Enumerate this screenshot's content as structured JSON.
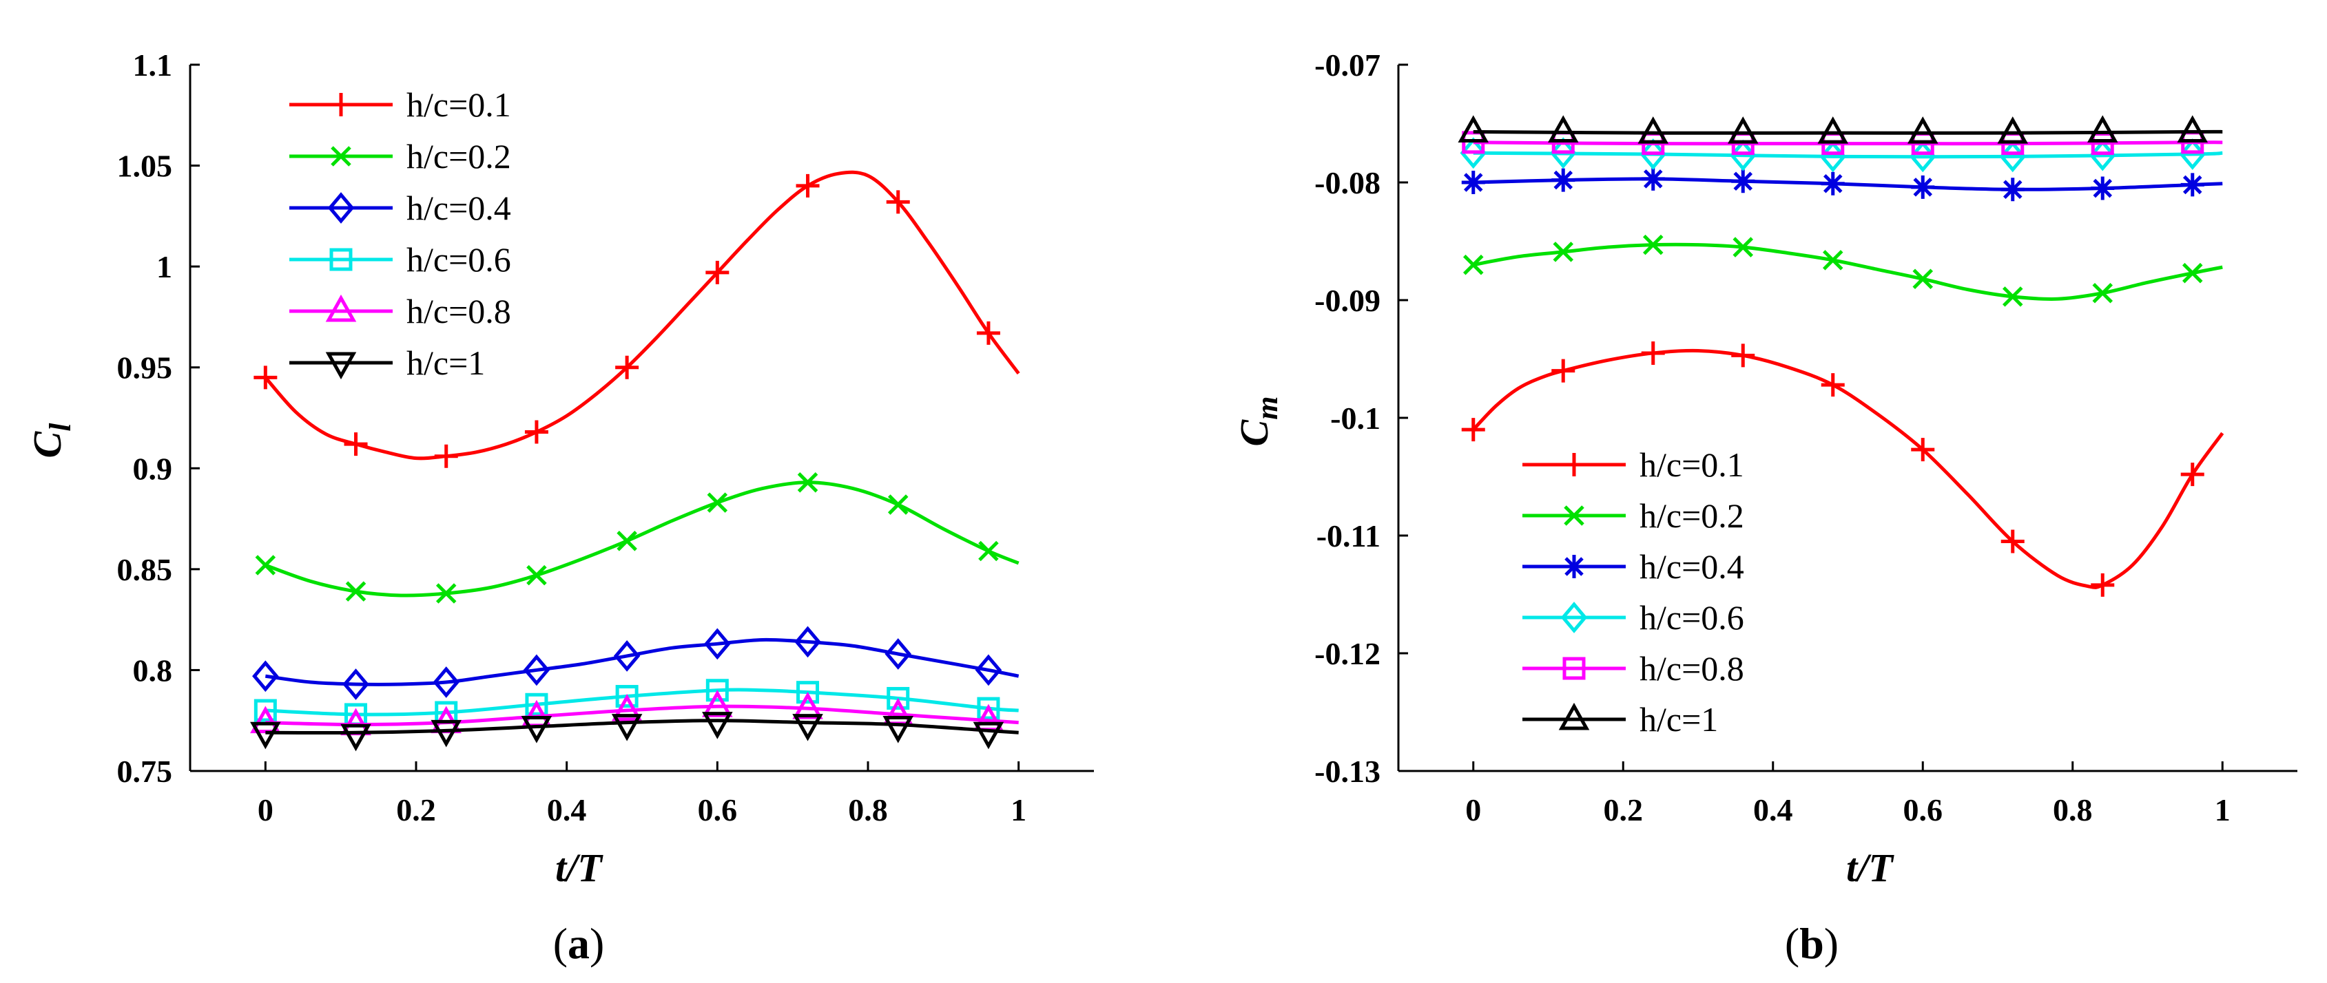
{
  "chart_data": [
    {
      "type": "line",
      "panel_label": "(a)",
      "caption": {
        "open": "(",
        "letter": "a",
        "close": ")"
      },
      "xlabel": "t/T",
      "ylabel": {
        "main": "C",
        "sub": "l"
      },
      "xlim": [
        -0.1,
        1.1
      ],
      "ylim": [
        0.75,
        1.1
      ],
      "xticks": [
        0,
        0.2,
        0.4,
        0.6,
        0.8,
        1
      ],
      "xtick_labels": [
        "0",
        "0.2",
        "0.4",
        "0.6",
        "0.8",
        "1"
      ],
      "yticks": [
        0.75,
        0.8,
        0.85,
        0.9,
        0.95,
        1.0,
        1.05,
        1.1
      ],
      "ytick_labels": [
        "0.75",
        "0.8",
        "0.85",
        "0.9",
        "0.95",
        "1",
        "1.05",
        "1.1"
      ],
      "legend_position": "top-left",
      "x": [
        0,
        0.12,
        0.24,
        0.36,
        0.48,
        0.6,
        0.72,
        0.84,
        0.96
      ],
      "series": [
        {
          "name": "h/c=0.1",
          "color": "#ff0000",
          "marker": "plus",
          "values": [
            0.945,
            0.912,
            0.906,
            0.918,
            0.95,
            0.997,
            1.04,
            1.032,
            0.967
          ],
          "curve": [
            [
              0,
              0.945
            ],
            [
              0.04,
              0.928
            ],
            [
              0.08,
              0.917
            ],
            [
              0.12,
              0.912
            ],
            [
              0.16,
              0.908
            ],
            [
              0.2,
              0.905
            ],
            [
              0.24,
              0.906
            ],
            [
              0.28,
              0.908
            ],
            [
              0.32,
              0.912
            ],
            [
              0.36,
              0.918
            ],
            [
              0.4,
              0.926
            ],
            [
              0.44,
              0.937
            ],
            [
              0.48,
              0.95
            ],
            [
              0.52,
              0.965
            ],
            [
              0.56,
              0.981
            ],
            [
              0.6,
              0.997
            ],
            [
              0.64,
              1.013
            ],
            [
              0.68,
              1.028
            ],
            [
              0.72,
              1.04
            ],
            [
              0.76,
              1.046
            ],
            [
              0.8,
              1.045
            ],
            [
              0.84,
              1.032
            ],
            [
              0.88,
              1.012
            ],
            [
              0.92,
              0.99
            ],
            [
              0.96,
              0.967
            ],
            [
              1.0,
              0.947
            ]
          ]
        },
        {
          "name": "h/c=0.2",
          "color": "#00e000",
          "marker": "x",
          "values": [
            0.852,
            0.839,
            0.838,
            0.847,
            0.864,
            0.883,
            0.893,
            0.882,
            0.859
          ],
          "curve": [
            [
              0,
              0.852
            ],
            [
              0.06,
              0.844
            ],
            [
              0.12,
              0.839
            ],
            [
              0.18,
              0.837
            ],
            [
              0.24,
              0.838
            ],
            [
              0.3,
              0.841
            ],
            [
              0.36,
              0.847
            ],
            [
              0.42,
              0.855
            ],
            [
              0.48,
              0.864
            ],
            [
              0.54,
              0.874
            ],
            [
              0.6,
              0.883
            ],
            [
              0.66,
              0.89
            ],
            [
              0.72,
              0.893
            ],
            [
              0.78,
              0.89
            ],
            [
              0.84,
              0.882
            ],
            [
              0.9,
              0.87
            ],
            [
              0.96,
              0.859
            ],
            [
              1.0,
              0.853
            ]
          ]
        },
        {
          "name": "h/c=0.4",
          "color": "#0000e0",
          "marker": "diamond",
          "values": [
            0.797,
            0.793,
            0.794,
            0.8,
            0.807,
            0.813,
            0.814,
            0.808,
            0.8
          ],
          "curve": [
            [
              0,
              0.797
            ],
            [
              0.06,
              0.794
            ],
            [
              0.12,
              0.793
            ],
            [
              0.18,
              0.793
            ],
            [
              0.24,
              0.794
            ],
            [
              0.3,
              0.797
            ],
            [
              0.36,
              0.8
            ],
            [
              0.42,
              0.803
            ],
            [
              0.48,
              0.807
            ],
            [
              0.54,
              0.811
            ],
            [
              0.6,
              0.813
            ],
            [
              0.66,
              0.815
            ],
            [
              0.72,
              0.814
            ],
            [
              0.78,
              0.812
            ],
            [
              0.84,
              0.808
            ],
            [
              0.9,
              0.804
            ],
            [
              0.96,
              0.8
            ],
            [
              1.0,
              0.797
            ]
          ]
        },
        {
          "name": "h/c=0.6",
          "color": "#00e8e8",
          "marker": "square",
          "values": [
            0.78,
            0.778,
            0.779,
            0.783,
            0.787,
            0.79,
            0.789,
            0.786,
            0.781
          ],
          "curve": [
            [
              0,
              0.78
            ],
            [
              0.12,
              0.778
            ],
            [
              0.24,
              0.779
            ],
            [
              0.36,
              0.783
            ],
            [
              0.48,
              0.787
            ],
            [
              0.6,
              0.79
            ],
            [
              0.66,
              0.79
            ],
            [
              0.72,
              0.789
            ],
            [
              0.84,
              0.786
            ],
            [
              0.96,
              0.781
            ],
            [
              1.0,
              0.78
            ]
          ]
        },
        {
          "name": "h/c=0.8",
          "color": "#ff00ff",
          "marker": "triangle-up",
          "values": [
            0.774,
            0.773,
            0.774,
            0.777,
            0.78,
            0.782,
            0.781,
            0.778,
            0.775
          ],
          "curve": [
            [
              0,
              0.774
            ],
            [
              0.12,
              0.773
            ],
            [
              0.24,
              0.774
            ],
            [
              0.36,
              0.777
            ],
            [
              0.48,
              0.78
            ],
            [
              0.6,
              0.782
            ],
            [
              0.72,
              0.781
            ],
            [
              0.84,
              0.778
            ],
            [
              0.96,
              0.775
            ],
            [
              1.0,
              0.774
            ]
          ]
        },
        {
          "name": "h/c=1",
          "color": "#000000",
          "marker": "triangle-down",
          "values": [
            0.769,
            0.768,
            0.77,
            0.772,
            0.773,
            0.774,
            0.773,
            0.772,
            0.769
          ],
          "curve": [
            [
              0,
              0.769
            ],
            [
              0.12,
              0.769
            ],
            [
              0.24,
              0.77
            ],
            [
              0.36,
              0.772
            ],
            [
              0.48,
              0.774
            ],
            [
              0.6,
              0.775
            ],
            [
              0.72,
              0.774
            ],
            [
              0.84,
              0.773
            ],
            [
              0.96,
              0.77
            ],
            [
              1.0,
              0.769
            ]
          ]
        }
      ]
    },
    {
      "type": "line",
      "panel_label": "(b)",
      "caption": {
        "open": "(",
        "letter": "b",
        "close": ")"
      },
      "xlabel": "t/T",
      "ylabel": {
        "main": "C",
        "sub": "m"
      },
      "xlim": [
        -0.1,
        1.1
      ],
      "ylim": [
        -0.13,
        -0.07
      ],
      "xticks": [
        0,
        0.2,
        0.4,
        0.6,
        0.8,
        1
      ],
      "xtick_labels": [
        "0",
        "0.2",
        "0.4",
        "0.6",
        "0.8",
        "1"
      ],
      "yticks": [
        -0.13,
        -0.12,
        -0.11,
        -0.1,
        -0.09,
        -0.08,
        -0.07
      ],
      "ytick_labels": [
        "-0.13",
        "-0.12",
        "-0.11",
        "-0.1",
        "-0.09",
        "-0.08",
        "-0.07"
      ],
      "legend_position": "bottom-left",
      "x": [
        0,
        0.12,
        0.24,
        0.36,
        0.48,
        0.6,
        0.72,
        0.84,
        0.96
      ],
      "series": [
        {
          "name": "h/c=0.1",
          "color": "#ff0000",
          "marker": "plus",
          "values": [
            -0.101,
            -0.096,
            -0.0945,
            -0.0947,
            -0.0972,
            -0.1027,
            -0.1105,
            -0.1142,
            -0.1048
          ],
          "curve": [
            [
              0,
              -0.101
            ],
            [
              0.03,
              -0.099
            ],
            [
              0.06,
              -0.0975
            ],
            [
              0.09,
              -0.0966
            ],
            [
              0.12,
              -0.096
            ],
            [
              0.18,
              -0.0951
            ],
            [
              0.24,
              -0.0945
            ],
            [
              0.3,
              -0.0943
            ],
            [
              0.36,
              -0.0947
            ],
            [
              0.42,
              -0.0957
            ],
            [
              0.48,
              -0.0972
            ],
            [
              0.54,
              -0.0997
            ],
            [
              0.6,
              -0.1027
            ],
            [
              0.66,
              -0.1065
            ],
            [
              0.72,
              -0.1105
            ],
            [
              0.78,
              -0.1134
            ],
            [
              0.82,
              -0.1143
            ],
            [
              0.84,
              -0.1142
            ],
            [
              0.88,
              -0.1125
            ],
            [
              0.92,
              -0.1092
            ],
            [
              0.96,
              -0.1048
            ],
            [
              1.0,
              -0.1013
            ]
          ]
        },
        {
          "name": "h/c=0.2",
          "color": "#00e000",
          "marker": "x",
          "values": [
            -0.087,
            -0.0859,
            -0.0853,
            -0.0855,
            -0.0866,
            -0.0882,
            -0.0897,
            -0.0894,
            -0.0877
          ],
          "curve": [
            [
              0,
              -0.087
            ],
            [
              0.06,
              -0.0863
            ],
            [
              0.12,
              -0.0859
            ],
            [
              0.18,
              -0.0855
            ],
            [
              0.24,
              -0.0853
            ],
            [
              0.3,
              -0.0853
            ],
            [
              0.36,
              -0.0855
            ],
            [
              0.42,
              -0.086
            ],
            [
              0.48,
              -0.0866
            ],
            [
              0.54,
              -0.0874
            ],
            [
              0.6,
              -0.0882
            ],
            [
              0.66,
              -0.0891
            ],
            [
              0.72,
              -0.0897
            ],
            [
              0.78,
              -0.0899
            ],
            [
              0.84,
              -0.0894
            ],
            [
              0.9,
              -0.0885
            ],
            [
              0.96,
              -0.0877
            ],
            [
              1.0,
              -0.0872
            ]
          ]
        },
        {
          "name": "h/c=0.4",
          "color": "#0000e0",
          "marker": "asterisk",
          "values": [
            -0.08,
            -0.0798,
            -0.0797,
            -0.0799,
            -0.0801,
            -0.0804,
            -0.0806,
            -0.0805,
            -0.0802
          ],
          "curve": [
            [
              0,
              -0.08
            ],
            [
              0.12,
              -0.0798
            ],
            [
              0.24,
              -0.0797
            ],
            [
              0.36,
              -0.0799
            ],
            [
              0.48,
              -0.0801
            ],
            [
              0.6,
              -0.0804
            ],
            [
              0.72,
              -0.0806
            ],
            [
              0.84,
              -0.0805
            ],
            [
              0.96,
              -0.0802
            ],
            [
              1.0,
              -0.0801
            ]
          ]
        },
        {
          "name": "h/c=0.6",
          "color": "#00e8e8",
          "marker": "diamond",
          "values": [
            -0.0775,
            -0.0775,
            -0.0776,
            -0.0777,
            -0.0778,
            -0.0778,
            -0.0778,
            -0.0777,
            -0.0776
          ],
          "curve": [
            [
              0,
              -0.0775
            ],
            [
              0.24,
              -0.0776
            ],
            [
              0.48,
              -0.0778
            ],
            [
              0.72,
              -0.0778
            ],
            [
              0.96,
              -0.0776
            ],
            [
              1.0,
              -0.0775
            ]
          ]
        },
        {
          "name": "h/c=0.8",
          "color": "#ff00ff",
          "marker": "square",
          "values": [
            -0.0766,
            -0.0766,
            -0.0767,
            -0.0767,
            -0.0767,
            -0.0767,
            -0.0767,
            -0.0767,
            -0.0766
          ],
          "curve": [
            [
              0,
              -0.0766
            ],
            [
              0.24,
              -0.0767
            ],
            [
              0.48,
              -0.0767
            ],
            [
              0.72,
              -0.0767
            ],
            [
              0.96,
              -0.0766
            ],
            [
              1.0,
              -0.0766
            ]
          ]
        },
        {
          "name": "h/c=1",
          "color": "#000000",
          "marker": "triangle-up",
          "values": [
            -0.0757,
            -0.0757,
            -0.0758,
            -0.0758,
            -0.0758,
            -0.0758,
            -0.0758,
            -0.0757,
            -0.0757
          ],
          "curve": [
            [
              0,
              -0.0757
            ],
            [
              0.24,
              -0.0758
            ],
            [
              0.48,
              -0.0758
            ],
            [
              0.72,
              -0.0758
            ],
            [
              0.96,
              -0.0757
            ],
            [
              1.0,
              -0.0757
            ]
          ]
        }
      ]
    }
  ]
}
